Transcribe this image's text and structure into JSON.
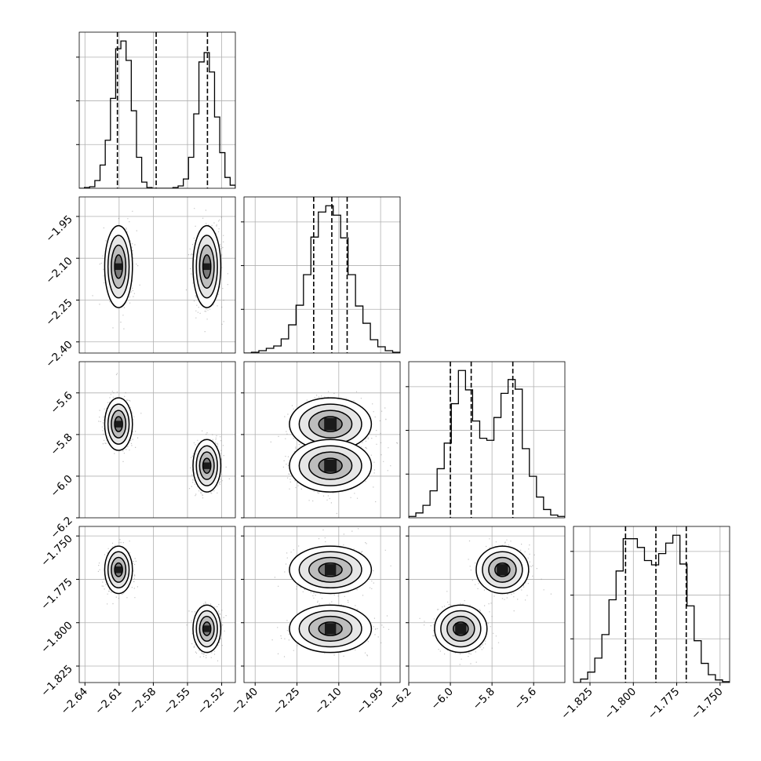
{
  "chart_data": {
    "type": "corner",
    "title": "",
    "dimensions": 4,
    "grid": true,
    "contour_levels": 4,
    "colors": {
      "line": "#000000",
      "grid": "#b0b0b0",
      "points": "#7a7a7a",
      "density": "#000000"
    },
    "axes": [
      {
        "range": [
          -2.645,
          -2.508
        ],
        "ticks": [
          -2.64,
          -2.61,
          -2.58,
          -2.55,
          -2.52
        ],
        "tick_labels": [
          "−2.64",
          "−2.61",
          "−2.58",
          "−2.55",
          "−2.52"
        ]
      },
      {
        "range": [
          -2.44,
          -1.88
        ],
        "ticks": [
          -2.4,
          -2.25,
          -2.1,
          -1.95
        ],
        "tick_labels": [
          "−2.40",
          "−2.25",
          "−2.10",
          "−1.95"
        ]
      },
      {
        "range": [
          -6.2,
          -5.45
        ],
        "ticks": [
          -6.2,
          -6.0,
          -5.8,
          -5.6
        ],
        "tick_labels": [
          "−6.2",
          "−6.0",
          "−5.8",
          "−5.6"
        ]
      },
      {
        "range": [
          -1.8345,
          -1.7445
        ],
        "ticks": [
          -1.825,
          -1.8,
          -1.775,
          -1.75
        ],
        "tick_labels": [
          "−1.825",
          "−1.800",
          "−1.775",
          "−1.750"
        ]
      }
    ],
    "quantiles": [
      [
        -2.6115,
        -2.5775,
        -2.5325
      ],
      [
        -2.19,
        -2.125,
        -2.07
      ],
      [
        -6.0,
        -5.9,
        -5.7
      ],
      [
        -1.8045,
        -1.787,
        -1.7695
      ]
    ],
    "histograms": [
      {
        "edges_range": [
          -2.645,
          -2.508
        ],
        "counts": [
          0,
          1,
          2,
          10,
          30,
          62,
          116,
          180,
          190,
          165,
          100,
          40,
          8,
          1,
          0,
          0,
          0,
          0,
          1,
          3,
          12,
          40,
          96,
          163,
          175,
          150,
          92,
          46,
          14,
          4
        ]
      },
      {
        "edges_range": [
          -2.44,
          -1.88
        ],
        "counts": [
          0,
          1,
          3,
          6,
          9,
          18,
          36,
          61,
          100,
          148,
          180,
          188,
          176,
          147,
          100,
          60,
          38,
          17,
          8,
          3,
          1
        ]
      },
      {
        "edges_range": [
          -6.2,
          -5.45
        ],
        "counts": [
          2,
          7,
          18,
          39,
          71,
          108,
          165,
          213,
          185,
          140,
          115,
          112,
          145,
          180,
          200,
          186,
          100,
          60,
          30,
          12,
          4,
          2
        ]
      },
      {
        "edges_range": [
          -1.8345,
          -1.7445
        ],
        "counts": [
          0,
          4,
          12,
          28,
          55,
          95,
          128,
          165,
          165,
          155,
          140,
          135,
          148,
          160,
          169,
          136,
          88,
          48,
          22,
          9,
          3,
          1
        ]
      }
    ],
    "modes": [
      {
        "weight": 0.5,
        "mean": [
          -2.6105,
          -2.13,
          -5.75,
          -1.7695
        ]
      },
      {
        "weight": 0.5,
        "mean": [
          -2.533,
          -2.13,
          -5.95,
          -1.8035
        ]
      }
    ],
    "spreads": [
      0.0058,
      0.07,
      0.06,
      0.0065
    ]
  }
}
